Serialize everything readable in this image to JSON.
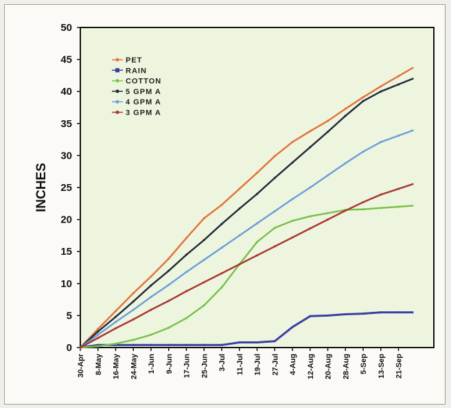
{
  "chart_data": {
    "type": "line",
    "title": "",
    "xlabel": "",
    "ylabel": "INCHES",
    "ylim": [
      0,
      50
    ],
    "yticks": [
      "0",
      "5",
      "10",
      "15",
      "20",
      "25",
      "30",
      "35",
      "40",
      "45",
      "50"
    ],
    "categories": [
      "30-Apr",
      "8-May",
      "16-May",
      "24-May",
      "1-Jun",
      "9-Jun",
      "17-Jun",
      "25-Jun",
      "3-Jul",
      "11-Jul",
      "19-Jul",
      "27-Jul",
      "4-Aug",
      "12-Aug",
      "20-Aug",
      "28-Aug",
      "5-Sep",
      "13-Sep",
      "21-Sep"
    ],
    "grid": false,
    "legend_position": "top-left",
    "background_color": "#eef5df",
    "series": [
      {
        "name": "PET",
        "color": "#e2733a",
        "marker": "dot",
        "values": [
          0,
          2.9,
          5.7,
          8.5,
          11.1,
          13.9,
          17.1,
          20.2,
          22.3,
          24.8,
          27.3,
          29.9,
          32.1,
          33.8,
          35.4,
          37.3,
          39.1,
          40.8,
          42.4
        ]
      },
      {
        "name": "RAIN",
        "color": "#3a3fa3",
        "marker": "square",
        "values": [
          0,
          0.4,
          0.4,
          0.4,
          0.4,
          0.4,
          0.4,
          0.4,
          0.4,
          0.8,
          0.8,
          1.0,
          3.2,
          4.9,
          5.0,
          5.2,
          5.3,
          5.5,
          5.5
        ]
      },
      {
        "name": "COTTON",
        "color": "#78c24a",
        "marker": "dot",
        "values": [
          0,
          0.2,
          0.6,
          1.2,
          2.0,
          3.1,
          4.6,
          6.6,
          9.4,
          13.0,
          16.5,
          18.7,
          19.8,
          20.5,
          21.0,
          21.5,
          21.6,
          21.8,
          22.0
        ]
      },
      {
        "name": "5 GPM A",
        "color": "#222a3a",
        "marker": "dot",
        "values": [
          0,
          2.5,
          4.8,
          7.2,
          9.7,
          12.0,
          14.5,
          16.8,
          19.3,
          21.7,
          24.0,
          26.5,
          28.9,
          31.3,
          33.7,
          36.2,
          38.5,
          40.0,
          41.1
        ]
      },
      {
        "name": "4 GPM A",
        "color": "#6d9fd8",
        "marker": "dot",
        "values": [
          0,
          2.0,
          4.0,
          5.9,
          7.9,
          9.8,
          11.8,
          13.7,
          15.6,
          17.5,
          19.4,
          21.3,
          23.2,
          25.0,
          26.9,
          28.8,
          30.6,
          32.1,
          33.1
        ]
      },
      {
        "name": "3 GPM A",
        "color": "#a83832",
        "marker": "dot",
        "values": [
          0,
          1.5,
          3.0,
          4.4,
          5.9,
          7.3,
          8.8,
          10.2,
          11.6,
          13.0,
          14.4,
          15.8,
          17.2,
          18.6,
          20.0,
          21.4,
          22.7,
          23.9,
          24.8
        ]
      }
    ]
  }
}
